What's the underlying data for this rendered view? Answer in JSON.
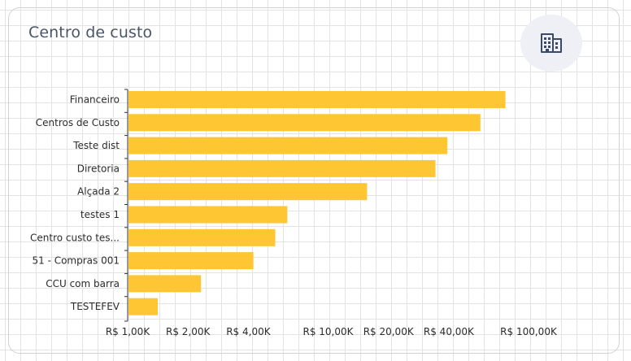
{
  "header": {
    "title": "Centro de custo",
    "icon": "building-icon"
  },
  "chart_data": {
    "type": "bar",
    "orientation": "horizontal",
    "title": "Centro de custo",
    "categories": [
      "Financeiro",
      "Centros de Custo",
      "Teste dist",
      "Diretoria",
      "Alçada 2",
      "testes 1",
      "Centro custo tes...",
      "51 - Compras 001",
      "CCU com barra",
      "TESTEFEV"
    ],
    "values": [
      76000,
      57000,
      39000,
      34000,
      15500,
      6200,
      5400,
      4200,
      2300,
      1400
    ],
    "x_scale": "log",
    "xlim": [
      1000,
      100000
    ],
    "x_ticks": [
      {
        "value": 1000,
        "label": "R$ 1,00K"
      },
      {
        "value": 2000,
        "label": "R$ 2,00K"
      },
      {
        "value": 4000,
        "label": "R$ 4,00K"
      },
      {
        "value": 10000,
        "label": "R$ 10,00K"
      },
      {
        "value": 20000,
        "label": "R$ 20,00K"
      },
      {
        "value": 40000,
        "label": "R$ 40,00K"
      },
      {
        "value": 100000,
        "label": "R$ 100,00K"
      }
    ],
    "bar_color": "#ffc633",
    "grid": false,
    "legend": "none"
  }
}
